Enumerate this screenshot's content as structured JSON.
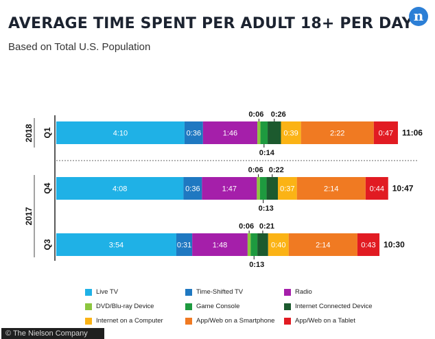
{
  "title": "AVERAGE TIME SPENT PER ADULT 18+ PER DAY",
  "subtitle": "Based on Total U.S. Population",
  "logo_letter": "n",
  "footer": "© The Nielson Company",
  "chart_data": {
    "type": "bar",
    "orientation": "horizontal-stacked",
    "year_labels": [
      "2018",
      "2017"
    ],
    "rows": [
      {
        "year": "2018",
        "quarter": "Q1",
        "total": "11:06",
        "segments": [
          "4:10",
          "0:36",
          "1:46",
          "0:06",
          "0:14",
          "0:26",
          "0:39",
          "2:22",
          "0:47"
        ]
      },
      {
        "year": "2017",
        "quarter": "Q4",
        "total": "10:47",
        "segments": [
          "4:08",
          "0:36",
          "1:47",
          "0:06",
          "0:13",
          "0:22",
          "0:37",
          "2:14",
          "0:44"
        ]
      },
      {
        "year": "2017",
        "quarter": "Q3",
        "total": "10:30",
        "segments": [
          "3:54",
          "0:31",
          "1:48",
          "0:06",
          "0:13",
          "0:21",
          "0:40",
          "2:14",
          "0:43"
        ]
      }
    ],
    "series": [
      {
        "name": "Live TV",
        "color": "#1fb1e6"
      },
      {
        "name": "Time-Shifted TV",
        "color": "#1f78c1"
      },
      {
        "name": "Radio",
        "color": "#a51faa"
      },
      {
        "name": "DVD/Blu-ray Device",
        "color": "#8cc63f"
      },
      {
        "name": "Game Console",
        "color": "#1e9a3f"
      },
      {
        "name": "Internet Connected Device",
        "color": "#1c5a2e"
      },
      {
        "name": "Internet on a Computer",
        "color": "#fbb315"
      },
      {
        "name": "App/Web on a Smartphone",
        "color": "#f07a22"
      },
      {
        "name": "App/Web on a Tablet",
        "color": "#e11b22"
      }
    ],
    "legend_position": "bottom"
  }
}
